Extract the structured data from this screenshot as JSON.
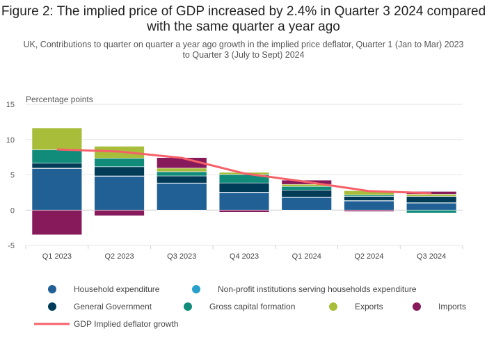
{
  "title": "Figure 2: The implied price of GDP increased by 2.4% in Quarter 3 2024 compared with the same quarter a year ago",
  "subtitle": "UK, Contributions to quarter on quarter a year ago growth in the implied price deflator, Quarter 1 (Jan to Mar) 2023 to Quarter 3 (July to Sept) 2024",
  "chart_data": {
    "type": "bar",
    "stacked": true,
    "ylabel": "Percentage points",
    "ylim": [
      -5,
      15
    ],
    "yticks": [
      -5,
      0,
      5,
      10,
      15
    ],
    "grid": true,
    "legend_position": "bottom",
    "categories": [
      "Q1 2023",
      "Q2 2023",
      "Q3 2023",
      "Q4 2023",
      "Q1 2024",
      "Q2 2024",
      "Q3 2024"
    ],
    "series": [
      {
        "name": "Household expenditure",
        "color": "#206095",
        "kind": "bar",
        "values": [
          5.9,
          4.8,
          3.8,
          2.5,
          1.8,
          1.3,
          1.0
        ]
      },
      {
        "name": "Non-profit institutions serving households expenditure",
        "color": "#27a0cc",
        "kind": "bar",
        "values": [
          0.05,
          0.05,
          0.05,
          0.05,
          0.05,
          0.05,
          0.05
        ]
      },
      {
        "name": "General Government",
        "color": "#003c57",
        "kind": "bar",
        "values": [
          0.7,
          1.3,
          1.0,
          1.3,
          1.0,
          0.6,
          0.9
        ]
      },
      {
        "name": "Gross capital formation",
        "color": "#118c7b",
        "kind": "bar",
        "values": [
          1.9,
          1.2,
          0.6,
          1.2,
          0.5,
          0.2,
          -0.4
        ]
      },
      {
        "name": "Exports",
        "color": "#a8bd3a",
        "kind": "bar",
        "values": [
          3.1,
          1.7,
          0.5,
          0.3,
          0.3,
          0.6,
          0.3
        ]
      },
      {
        "name": "Imports",
        "color": "#871a5b",
        "kind": "bar",
        "values": [
          -3.5,
          -0.8,
          1.5,
          -0.3,
          0.6,
          -0.2,
          0.4
        ]
      },
      {
        "name": "GDP Implied deflator growth",
        "color": "#f66068",
        "kind": "line",
        "values": [
          8.6,
          8.3,
          7.4,
          5.2,
          4.0,
          2.7,
          2.4
        ]
      }
    ]
  }
}
